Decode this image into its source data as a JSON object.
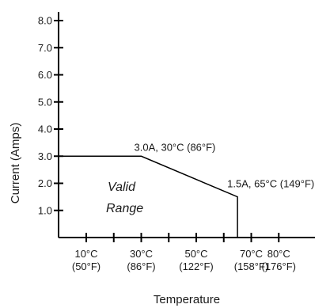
{
  "chart_data": {
    "type": "line",
    "xlabel": "Temperature",
    "ylabel": "Current (Amps)",
    "xlim": [
      -10,
      85
    ],
    "ylim": [
      0,
      8.5
    ],
    "grid": false,
    "x_ticks": [
      10,
      20,
      30,
      40,
      50,
      60,
      70,
      80
    ],
    "x_tick_labels": [
      {
        "x": 10,
        "line1": "10°C",
        "line2": "(50°F)"
      },
      {
        "x": 30,
        "line1": "30°C",
        "line2": "(86°F)"
      },
      {
        "x": 50,
        "line1": "50°C",
        "line2": "(122°F)"
      },
      {
        "x": 70,
        "line1": "70°C",
        "line2": "(158°F)"
      },
      {
        "x": 80,
        "line1": "80°C",
        "line2": "(176°F)"
      }
    ],
    "y_ticks": [
      1.0,
      2.0,
      3.0,
      4.0,
      5.0,
      6.0,
      7.0,
      8.0
    ],
    "y_tick_labels": [
      "1.0",
      "2.0",
      "3.0",
      "4.0",
      "5.0",
      "6.0",
      "7.0",
      "8.0"
    ],
    "series": [
      {
        "x": [
          -10,
          30,
          65,
          65
        ],
        "y": [
          3.0,
          3.0,
          1.5,
          0.0
        ]
      }
    ],
    "annotations": [
      {
        "x": 30,
        "y": 3.0,
        "text": "3.0A, 30°C (86°F)"
      },
      {
        "x": 65,
        "y": 1.5,
        "text": "1.5A, 65°C (149°F)"
      }
    ],
    "region_label": [
      "Valid",
      "Range"
    ]
  }
}
